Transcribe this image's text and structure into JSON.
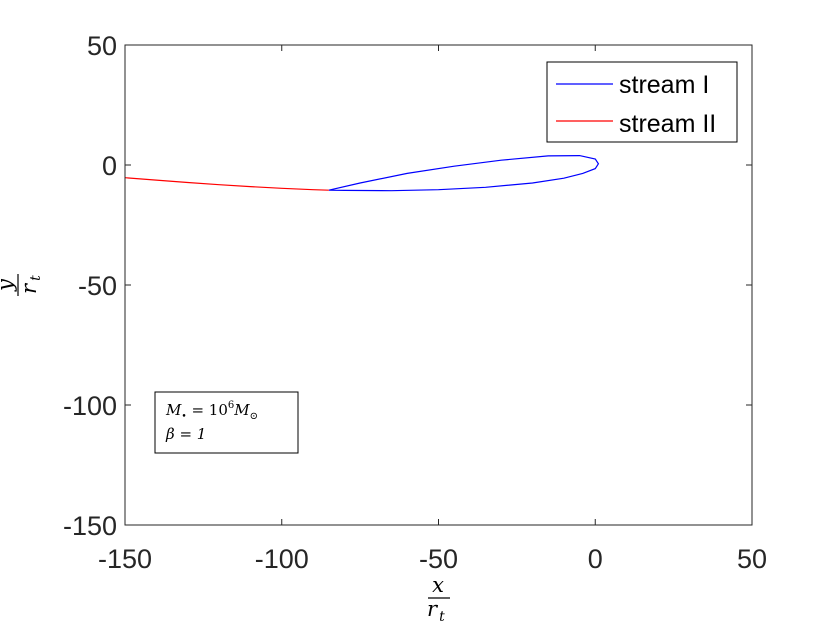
{
  "chart_data": {
    "type": "line",
    "title": "",
    "xlabel": {
      "numerator": "x",
      "denominator": "r",
      "subscript": "t"
    },
    "ylabel": {
      "numerator": "y",
      "denominator": "r",
      "subscript": "t"
    },
    "xlim": [
      -150,
      50
    ],
    "ylim": [
      -150,
      50
    ],
    "xticks": [
      -150,
      -100,
      -50,
      0,
      50
    ],
    "yticks": [
      -150,
      -100,
      -50,
      0,
      50
    ],
    "xtick_labels": [
      "-150",
      "-100",
      "-50",
      "0",
      "50"
    ],
    "ytick_labels": [
      "-150",
      "-100",
      "-50",
      "0",
      "50"
    ],
    "grid": false,
    "legend_position": "top-right",
    "series": [
      {
        "name": "stream I",
        "color": "#0000ff",
        "x": [
          -85,
          -75,
          -60,
          -45,
          -30,
          -15,
          -5,
          0,
          1,
          0,
          -4,
          -10,
          -20,
          -35,
          -50,
          -65,
          -80,
          -85
        ],
        "y": [
          -10.5,
          -7.5,
          -3.5,
          -0.5,
          2,
          3.8,
          3.9,
          2.5,
          0.5,
          -1.5,
          -3.5,
          -5.5,
          -7.5,
          -9.3,
          -10.3,
          -10.7,
          -10.6,
          -10.5
        ]
      },
      {
        "name": "stream II",
        "color": "#ff0000",
        "x": [
          -150,
          -140,
          -130,
          -120,
          -110,
          -100,
          -90,
          -85
        ],
        "y": [
          -5.3,
          -6.3,
          -7.3,
          -8.2,
          -9.0,
          -9.7,
          -10.3,
          -10.5
        ]
      }
    ],
    "annotation": {
      "line1": {
        "lhs": "M",
        "lhs_sub": "•",
        "eq": " = 10",
        "exp": "6",
        "rhs": "M",
        "rhs_sub": "⊙"
      },
      "line2": "β = 1"
    }
  }
}
